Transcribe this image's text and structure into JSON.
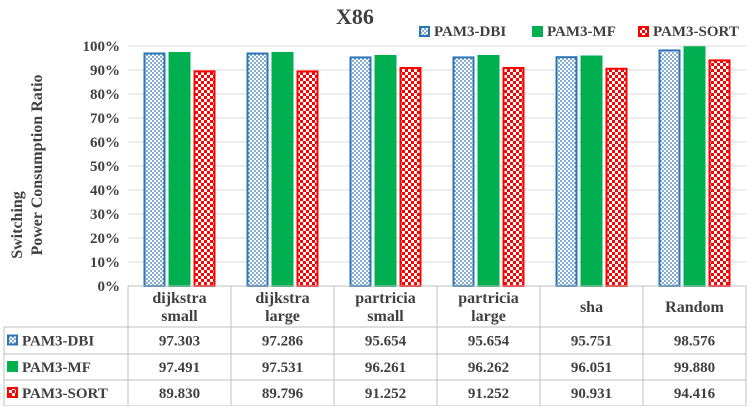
{
  "chart_data": {
    "type": "bar",
    "title": "X86",
    "ylabel_lines": [
      "Switching",
      "Power Consumption Ratio"
    ],
    "xlabel": "",
    "ylim": [
      0,
      100
    ],
    "yticks": [
      "0%",
      "10%",
      "20%",
      "30%",
      "40%",
      "50%",
      "60%",
      "70%",
      "80%",
      "90%",
      "100%"
    ],
    "categories": [
      [
        "dijkstra",
        "small"
      ],
      [
        "dijkstra",
        "large"
      ],
      [
        "partricia",
        "small"
      ],
      [
        "partricia",
        "large"
      ],
      [
        "sha"
      ],
      [
        "Random"
      ]
    ],
    "series": [
      {
        "name": "PAM3-DBI",
        "values": [
          97.303,
          97.286,
          95.654,
          95.654,
          95.751,
          98.576
        ],
        "labels": [
          "97.303",
          "97.286",
          "95.654",
          "95.654",
          "95.751",
          "98.576"
        ],
        "color": "#2e75b6",
        "pattern": "dots"
      },
      {
        "name": "PAM3-MF",
        "values": [
          97.491,
          97.531,
          96.261,
          96.262,
          96.051,
          99.88
        ],
        "labels": [
          "97.491",
          "97.531",
          "96.261",
          "96.262",
          "96.051",
          "99.880"
        ],
        "color": "#00b050",
        "pattern": "solid"
      },
      {
        "name": "PAM3-SORT",
        "values": [
          89.83,
          89.796,
          91.252,
          91.252,
          90.931,
          94.416
        ],
        "labels": [
          "89.830",
          "89.796",
          "91.252",
          "91.252",
          "90.931",
          "94.416"
        ],
        "color": "#ff0000",
        "pattern": "checker"
      }
    ],
    "legend_position": "top-right",
    "grid": true,
    "data_table": true
  }
}
